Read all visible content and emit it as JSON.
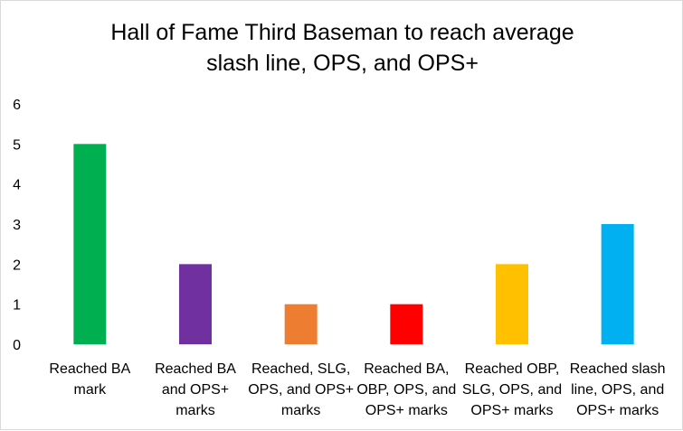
{
  "chart_data": {
    "type": "bar",
    "title_lines": [
      "Hall of Fame Third Baseman to reach average",
      "slash line, OPS, and OPS+"
    ],
    "categories": [
      [
        "Reached BA",
        "mark"
      ],
      [
        "Reached BA",
        "and OPS+",
        "marks"
      ],
      [
        "Reached, SLG,",
        "OPS, and OPS+",
        "marks"
      ],
      [
        "Reached BA,",
        "OBP, OPS, and",
        "OPS+ marks"
      ],
      [
        "Reached OBP,",
        "SLG, OPS, and",
        "OPS+ marks"
      ],
      [
        "Reached slash",
        "line, OPS, and",
        "OPS+ marks"
      ]
    ],
    "values": [
      5,
      2,
      1,
      1,
      2,
      3
    ],
    "colors": [
      "#00b050",
      "#7030a0",
      "#ed7d31",
      "#ff0000",
      "#ffc000",
      "#00b0f0"
    ],
    "ylim": [
      0,
      6
    ],
    "yticks": [
      0,
      1,
      2,
      3,
      4,
      5,
      6
    ],
    "grid": false,
    "legend": "none"
  }
}
